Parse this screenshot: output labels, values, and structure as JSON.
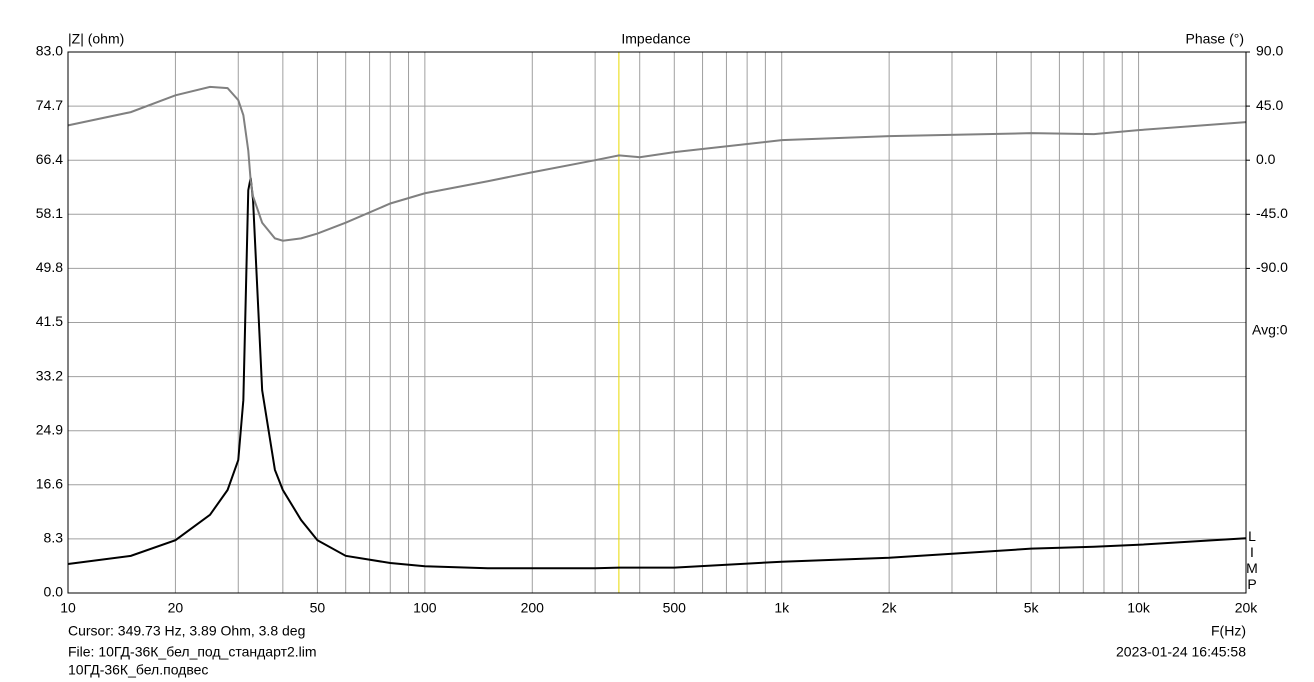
{
  "chart_data": {
    "type": "line",
    "title": "Impedance",
    "y_label": "|Z| (ohm)",
    "y2_label": "Phase (°)",
    "x_label": "F(Hz)",
    "annotation": "Avg:0",
    "side_label": "LIMP",
    "cursor_text": "Cursor: 349.73 Hz, 3.89 Ohm, 3.8 deg",
    "cursor_x": 349.73,
    "cursor_color": "#e8d800",
    "file_text": "File: 10ГД-36К_бел_под_стандарт2.lim",
    "file_note": "10ГД-36К_бел.подвес",
    "timestamp": "2023-01-24 16:45:58",
    "xscale": "log",
    "grid": true,
    "xlim": [
      10,
      20000
    ],
    "xticks": [
      10,
      20,
      50,
      100,
      200,
      500,
      {
        "value": 1000,
        "label": "1k"
      },
      {
        "value": 2000,
        "label": "2k"
      },
      {
        "value": 5000,
        "label": "5k"
      },
      {
        "value": 10000,
        "label": "10k"
      },
      {
        "value": 20000,
        "label": "20k"
      }
    ],
    "xgrid": [
      30,
      40,
      60,
      70,
      80,
      90,
      300,
      400,
      600,
      700,
      800,
      900,
      3000,
      4000,
      6000,
      7000,
      8000,
      9000
    ],
    "ylim": [
      0,
      83
    ],
    "yticks": [
      {
        "value": 0,
        "label": "0.0"
      },
      8.3,
      16.6,
      24.9,
      33.2,
      41.5,
      49.8,
      58.1,
      66.4,
      74.7,
      {
        "value": 83,
        "label": "83.0"
      }
    ],
    "y2lim": [
      -360,
      90
    ],
    "y2ticks": [
      {
        "value": 90,
        "label": "90.0"
      },
      {
        "value": 45,
        "label": "45.0"
      },
      {
        "value": 0,
        "label": "0.0"
      },
      {
        "value": -45,
        "label": "-45.0"
      },
      {
        "value": -90,
        "label": "-90.0"
      }
    ],
    "x": [
      10,
      15,
      20,
      25,
      28,
      30,
      31,
      32,
      32.5,
      33,
      35,
      38,
      40,
      45,
      50,
      60,
      80,
      100,
      150,
      200,
      300,
      350,
      400,
      500,
      1000,
      2000,
      5000,
      7500,
      10000,
      20000
    ],
    "series": [
      {
        "color": "#000000",
        "values": [
          4.45,
          5.7,
          8.1,
          12.0,
          15.8,
          20.4,
          29.6,
          61.8,
          63.7,
          60.3,
          31.1,
          18.9,
          15.8,
          11.2,
          8.1,
          5.7,
          4.6,
          4.1,
          3.8,
          3.8,
          3.8,
          3.9,
          3.9,
          3.9,
          4.8,
          5.4,
          6.8,
          7.1,
          7.4,
          8.4
        ]
      },
      {
        "color": "#808080",
        "axis": "y2",
        "values": [
          29,
          40,
          54,
          61,
          60,
          50,
          37.5,
          8,
          -17,
          -30,
          -52,
          -65,
          -67,
          -65,
          -61,
          -52,
          -36,
          -27.5,
          -17.5,
          -10,
          0,
          4,
          2.5,
          6.7,
          16.7,
          20,
          22.5,
          21.7,
          25,
          31.7
        ]
      }
    ]
  }
}
